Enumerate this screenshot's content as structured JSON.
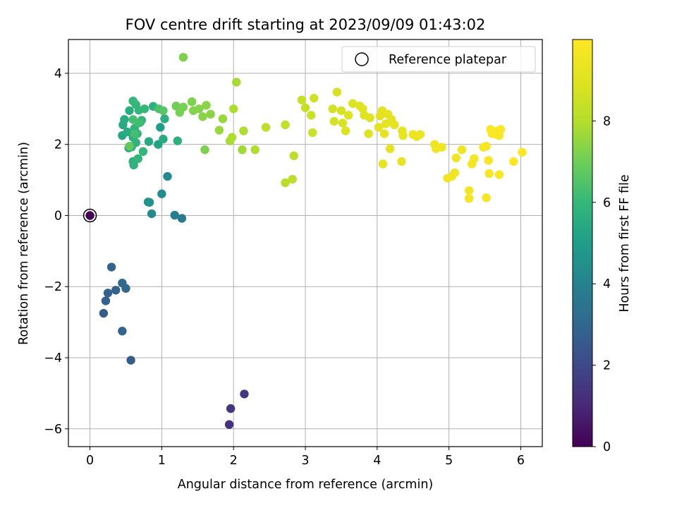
{
  "chart_data": {
    "type": "scatter",
    "title": "FOV centre drift starting at 2023/09/09 01:43:02",
    "xlabel": "Angular distance from reference (arcmin)",
    "ylabel": "Rotation from reference (arcmin)",
    "xlim": [
      -0.3,
      6.3
    ],
    "ylim": [
      -6.5,
      4.95
    ],
    "x_ticks": [
      0,
      1,
      2,
      3,
      4,
      5,
      6
    ],
    "y_ticks": [
      -6,
      -4,
      -2,
      0,
      2,
      4
    ],
    "grid": true,
    "legend": {
      "position": "top-right",
      "entries": [
        "Reference platepar"
      ]
    },
    "colorbar": {
      "label": "Hours from first FF file",
      "range": [
        0,
        10
      ],
      "ticks": [
        0,
        2,
        4,
        6,
        8
      ],
      "colormap": "viridis"
    },
    "reference_point": {
      "x": 0,
      "y": 0
    },
    "points": [
      {
        "x": 0,
        "y": 0,
        "c": 0.1
      },
      {
        "x": 1.94,
        "y": -5.88,
        "c": 1.3
      },
      {
        "x": 1.96,
        "y": -5.43,
        "c": 1.4
      },
      {
        "x": 2.15,
        "y": -5.02,
        "c": 1.5
      },
      {
        "x": 0.19,
        "y": -2.75,
        "c": 2.6
      },
      {
        "x": 0.22,
        "y": -2.4,
        "c": 2.7
      },
      {
        "x": 0.25,
        "y": -2.18,
        "c": 2.75
      },
      {
        "x": 0.36,
        "y": -2.1,
        "c": 2.8
      },
      {
        "x": 0.3,
        "y": -1.45,
        "c": 2.9
      },
      {
        "x": 0.45,
        "y": -1.9,
        "c": 3.0
      },
      {
        "x": 0.5,
        "y": -2.05,
        "c": 3.0
      },
      {
        "x": 0.45,
        "y": -3.25,
        "c": 2.9
      },
      {
        "x": 0.57,
        "y": -4.07,
        "c": 2.6
      },
      {
        "x": 1.28,
        "y": -0.08,
        "c": 3.7
      },
      {
        "x": 1.18,
        "y": 0.01,
        "c": 3.9
      },
      {
        "x": 0.86,
        "y": 0.05,
        "c": 4.3
      },
      {
        "x": 1.0,
        "y": 0.61,
        "c": 4.4
      },
      {
        "x": 0.81,
        "y": 0.38,
        "c": 4.6
      },
      {
        "x": 0.83,
        "y": 0.37,
        "c": 4.6
      },
      {
        "x": 1.08,
        "y": 1.1,
        "c": 4.3
      },
      {
        "x": 0.45,
        "y": 2.25,
        "c": 5.3
      },
      {
        "x": 0.46,
        "y": 2.55,
        "c": 5.4
      },
      {
        "x": 0.48,
        "y": 2.7,
        "c": 5.5
      },
      {
        "x": 0.52,
        "y": 2.35,
        "c": 5.5
      },
      {
        "x": 0.55,
        "y": 2.95,
        "c": 5.6
      },
      {
        "x": 0.54,
        "y": 1.9,
        "c": 5.5
      },
      {
        "x": 0.58,
        "y": 1.93,
        "c": 5.6
      },
      {
        "x": 0.6,
        "y": 2.2,
        "c": 5.7
      },
      {
        "x": 0.62,
        "y": 2.45,
        "c": 5.8
      },
      {
        "x": 0.64,
        "y": 2.05,
        "c": 5.8
      },
      {
        "x": 0.66,
        "y": 2.3,
        "c": 5.9
      },
      {
        "x": 0.6,
        "y": 1.52,
        "c": 5.7
      },
      {
        "x": 0.61,
        "y": 1.42,
        "c": 5.8
      },
      {
        "x": 0.67,
        "y": 1.6,
        "c": 5.9
      },
      {
        "x": 0.7,
        "y": 2.62,
        "c": 5.8
      },
      {
        "x": 0.72,
        "y": 2.68,
        "c": 5.9
      },
      {
        "x": 0.74,
        "y": 1.8,
        "c": 5.9
      },
      {
        "x": 0.6,
        "y": 3.22,
        "c": 6.0
      },
      {
        "x": 0.64,
        "y": 3.12,
        "c": 6.0
      },
      {
        "x": 0.68,
        "y": 2.96,
        "c": 5.9
      },
      {
        "x": 0.76,
        "y": 3.0,
        "c": 6.0
      },
      {
        "x": 0.82,
        "y": 2.08,
        "c": 5.4
      },
      {
        "x": 0.88,
        "y": 3.07,
        "c": 5.7
      },
      {
        "x": 0.95,
        "y": 2.0,
        "c": 5.2
      },
      {
        "x": 0.98,
        "y": 2.48,
        "c": 5.0
      },
      {
        "x": 1.02,
        "y": 2.15,
        "c": 5.4
      },
      {
        "x": 1.04,
        "y": 2.72,
        "c": 5.6
      },
      {
        "x": 0.96,
        "y": 3.0,
        "c": 6.4
      },
      {
        "x": 1.02,
        "y": 2.95,
        "c": 6.6
      },
      {
        "x": 0.68,
        "y": 2.6,
        "c": 6.2
      },
      {
        "x": 0.62,
        "y": 2.3,
        "c": 6.3
      },
      {
        "x": 0.55,
        "y": 1.95,
        "c": 6.8
      },
      {
        "x": 0.6,
        "y": 2.7,
        "c": 6.3
      },
      {
        "x": 1.22,
        "y": 2.1,
        "c": 5.7
      },
      {
        "x": 1.2,
        "y": 3.08,
        "c": 7.0
      },
      {
        "x": 1.25,
        "y": 2.9,
        "c": 7.1
      },
      {
        "x": 1.3,
        "y": 3.05,
        "c": 7.1
      },
      {
        "x": 1.3,
        "y": 4.45,
        "c": 7.2
      },
      {
        "x": 1.42,
        "y": 3.2,
        "c": 7.2
      },
      {
        "x": 1.44,
        "y": 2.95,
        "c": 7.3
      },
      {
        "x": 1.52,
        "y": 3.0,
        "c": 7.3
      },
      {
        "x": 1.57,
        "y": 2.78,
        "c": 7.4
      },
      {
        "x": 1.6,
        "y": 1.85,
        "c": 7.2
      },
      {
        "x": 1.62,
        "y": 3.1,
        "c": 7.4
      },
      {
        "x": 1.68,
        "y": 2.85,
        "c": 7.4
      },
      {
        "x": 1.8,
        "y": 2.4,
        "c": 7.6
      },
      {
        "x": 1.85,
        "y": 2.72,
        "c": 7.6
      },
      {
        "x": 1.95,
        "y": 2.1,
        "c": 7.8
      },
      {
        "x": 1.98,
        "y": 2.2,
        "c": 7.9
      },
      {
        "x": 2.0,
        "y": 3.0,
        "c": 7.9
      },
      {
        "x": 2.04,
        "y": 3.75,
        "c": 7.8
      },
      {
        "x": 2.12,
        "y": 1.85,
        "c": 7.7
      },
      {
        "x": 2.14,
        "y": 2.38,
        "c": 7.9
      },
      {
        "x": 2.3,
        "y": 1.85,
        "c": 7.9
      },
      {
        "x": 2.45,
        "y": 2.48,
        "c": 8.2
      },
      {
        "x": 2.72,
        "y": 2.55,
        "c": 8.3
      },
      {
        "x": 2.72,
        "y": 0.92,
        "c": 8.1
      },
      {
        "x": 2.82,
        "y": 1.02,
        "c": 8.2
      },
      {
        "x": 2.84,
        "y": 1.68,
        "c": 8.2
      },
      {
        "x": 2.95,
        "y": 3.25,
        "c": 8.4
      },
      {
        "x": 3.0,
        "y": 3.03,
        "c": 8.4
      },
      {
        "x": 3.08,
        "y": 2.82,
        "c": 8.5
      },
      {
        "x": 3.1,
        "y": 2.33,
        "c": 8.5
      },
      {
        "x": 3.12,
        "y": 3.3,
        "c": 8.6
      },
      {
        "x": 3.38,
        "y": 3.0,
        "c": 8.7
      },
      {
        "x": 3.4,
        "y": 2.65,
        "c": 8.7
      },
      {
        "x": 3.44,
        "y": 3.47,
        "c": 8.8
      },
      {
        "x": 3.5,
        "y": 2.95,
        "c": 8.8
      },
      {
        "x": 3.52,
        "y": 2.6,
        "c": 8.8
      },
      {
        "x": 3.56,
        "y": 2.38,
        "c": 8.9
      },
      {
        "x": 3.6,
        "y": 2.82,
        "c": 8.9
      },
      {
        "x": 3.66,
        "y": 3.15,
        "c": 8.9
      },
      {
        "x": 3.76,
        "y": 3.08,
        "c": 9.0
      },
      {
        "x": 3.8,
        "y": 3.0,
        "c": 9.0
      },
      {
        "x": 3.82,
        "y": 2.82,
        "c": 9.0
      },
      {
        "x": 3.88,
        "y": 2.3,
        "c": 9.0
      },
      {
        "x": 3.9,
        "y": 2.75,
        "c": 9.0
      },
      {
        "x": 4.02,
        "y": 2.48,
        "c": 9.1
      },
      {
        "x": 4.04,
        "y": 2.8,
        "c": 9.1
      },
      {
        "x": 4.07,
        "y": 2.95,
        "c": 9.1
      },
      {
        "x": 4.1,
        "y": 2.3,
        "c": 9.2
      },
      {
        "x": 4.12,
        "y": 2.58,
        "c": 9.2
      },
      {
        "x": 4.15,
        "y": 2.85,
        "c": 9.2
      },
      {
        "x": 4.2,
        "y": 2.7,
        "c": 9.2
      },
      {
        "x": 4.24,
        "y": 2.55,
        "c": 9.2
      },
      {
        "x": 4.08,
        "y": 1.45,
        "c": 9.2
      },
      {
        "x": 4.18,
        "y": 1.88,
        "c": 9.2
      },
      {
        "x": 4.35,
        "y": 2.38,
        "c": 9.3
      },
      {
        "x": 4.36,
        "y": 2.25,
        "c": 9.3
      },
      {
        "x": 4.34,
        "y": 1.52,
        "c": 9.3
      },
      {
        "x": 4.5,
        "y": 2.28,
        "c": 9.4
      },
      {
        "x": 4.55,
        "y": 2.22,
        "c": 9.4
      },
      {
        "x": 4.6,
        "y": 2.28,
        "c": 9.4
      },
      {
        "x": 4.8,
        "y": 2.0,
        "c": 9.5
      },
      {
        "x": 4.82,
        "y": 1.88,
        "c": 9.5
      },
      {
        "x": 4.9,
        "y": 1.92,
        "c": 9.5
      },
      {
        "x": 4.98,
        "y": 1.05,
        "c": 9.6
      },
      {
        "x": 5.04,
        "y": 1.1,
        "c": 9.6
      },
      {
        "x": 5.08,
        "y": 1.2,
        "c": 9.6
      },
      {
        "x": 5.1,
        "y": 1.62,
        "c": 9.6
      },
      {
        "x": 5.18,
        "y": 1.85,
        "c": 9.6
      },
      {
        "x": 5.28,
        "y": 0.7,
        "c": 9.7
      },
      {
        "x": 5.28,
        "y": 0.48,
        "c": 9.7
      },
      {
        "x": 5.32,
        "y": 1.45,
        "c": 9.7
      },
      {
        "x": 5.35,
        "y": 1.6,
        "c": 9.7
      },
      {
        "x": 5.48,
        "y": 1.92,
        "c": 9.8
      },
      {
        "x": 5.52,
        "y": 1.95,
        "c": 9.8
      },
      {
        "x": 5.55,
        "y": 1.55,
        "c": 9.8
      },
      {
        "x": 5.56,
        "y": 1.18,
        "c": 9.8
      },
      {
        "x": 5.52,
        "y": 0.5,
        "c": 9.8
      },
      {
        "x": 5.58,
        "y": 2.42,
        "c": 9.9
      },
      {
        "x": 5.6,
        "y": 2.3,
        "c": 9.9
      },
      {
        "x": 5.64,
        "y": 2.35,
        "c": 9.9
      },
      {
        "x": 5.66,
        "y": 2.28,
        "c": 9.9
      },
      {
        "x": 5.68,
        "y": 2.38,
        "c": 9.9
      },
      {
        "x": 5.7,
        "y": 2.25,
        "c": 9.9
      },
      {
        "x": 5.72,
        "y": 2.42,
        "c": 9.9
      },
      {
        "x": 5.7,
        "y": 1.15,
        "c": 9.9
      },
      {
        "x": 5.9,
        "y": 1.52,
        "c": 9.95
      },
      {
        "x": 6.02,
        "y": 1.78,
        "c": 9.95
      }
    ]
  }
}
